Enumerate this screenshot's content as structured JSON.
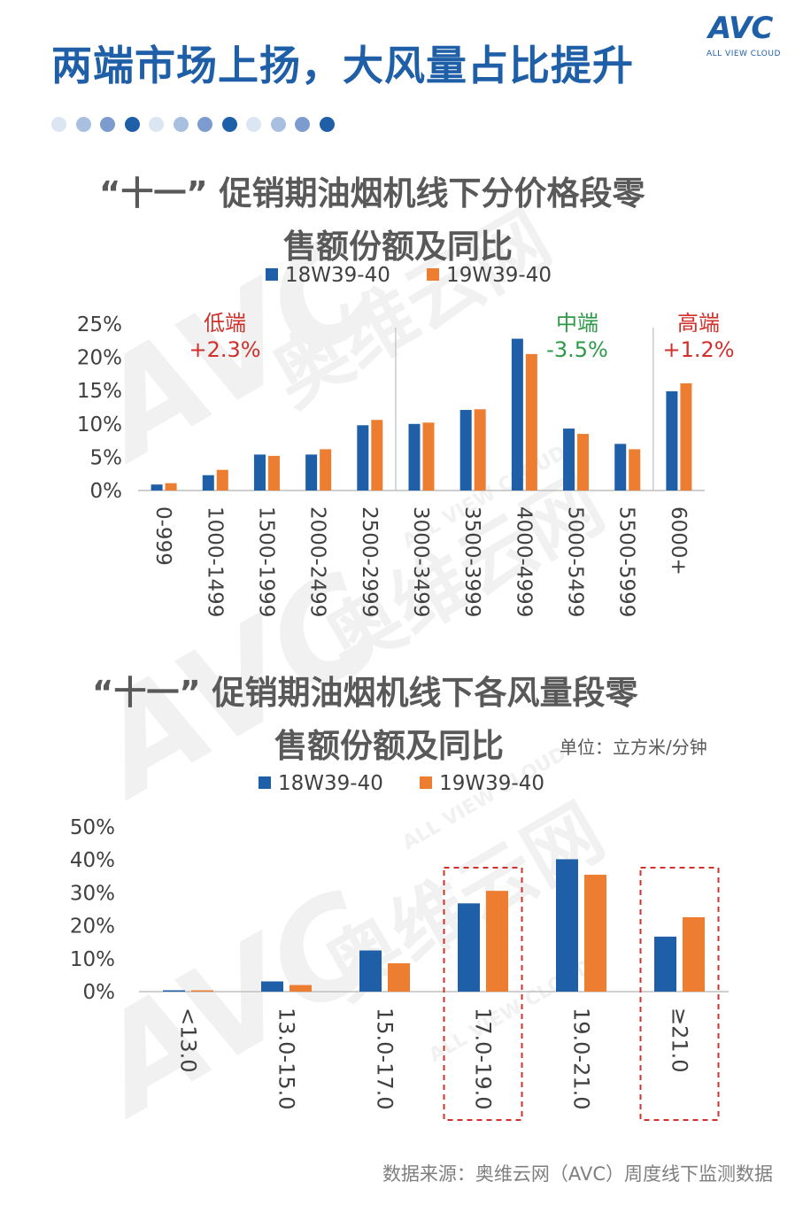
{
  "page": {
    "title": "两端市场上扬，大风量占比提升",
    "logo_text": "AVC",
    "logo_subtext": "ALL VIEW CLOUD",
    "dots": [
      "#dce6f3",
      "#a9bfe0",
      "#7c9cd0",
      "#1f5fa8",
      "#dce6f3",
      "#a9bfe0",
      "#7c9cd0",
      "#1f5fa8",
      "#dce6f3",
      "#a9bfe0",
      "#7c9cd0",
      "#1f5fa8"
    ],
    "source": "数据来源：奥维云网（AVC）周度线下监测数据",
    "watermark": "奥维云网"
  },
  "colors": {
    "series1": "#1f5fa8",
    "series2": "#ed7d31",
    "low_end": "#d0312d",
    "mid_end": "#2e9a48",
    "high_end": "#d0312d",
    "highlight_box": "#d0312d"
  },
  "chart_data": [
    {
      "type": "bar",
      "title_line1": "“十一” 促销期油烟机线下分价格段零",
      "title_line2": "售额份额及同比",
      "categories": [
        "0-999",
        "1000-1499",
        "1500-1999",
        "2000-2499",
        "2500-2999",
        "3000-3499",
        "3500-3999",
        "4000-4999",
        "5000-5499",
        "5500-5999",
        "6000+"
      ],
      "series": [
        {
          "name": "18W39-40",
          "values": [
            0.9,
            2.3,
            5.4,
            5.4,
            9.8,
            10.0,
            12.1,
            22.8,
            9.3,
            7.0,
            14.9
          ]
        },
        {
          "name": "19W39-40",
          "values": [
            1.1,
            3.1,
            5.2,
            6.2,
            10.6,
            10.2,
            12.2,
            20.5,
            8.5,
            6.2,
            16.1
          ]
        }
      ],
      "y_ticks": [
        "25%",
        "20%",
        "15%",
        "10%",
        "5%",
        "0%"
      ],
      "ylim": [
        0,
        25
      ],
      "segments": [
        {
          "label": "低端",
          "change": "+2.3%"
        },
        {
          "label": "中端",
          "change": "-3.5%"
        },
        {
          "label": "高端",
          "change": "+1.2%"
        }
      ],
      "grid": false
    },
    {
      "type": "bar",
      "title_line1": "“十一” 促销期油烟机线下各风量段零",
      "title_line2": "售额份额及同比",
      "unit": "单位：立方米/分钟",
      "categories": [
        "<13.0",
        "13.0-15.0",
        "15.0-17.0",
        "17.0-19.0",
        "19.0-21.0",
        "≥21.0"
      ],
      "series": [
        {
          "name": "18W39-40",
          "values": [
            0.4,
            3.1,
            12.5,
            26.8,
            40.2,
            16.7
          ]
        },
        {
          "name": "19W39-40",
          "values": [
            0.4,
            2.0,
            8.6,
            30.6,
            35.5,
            22.6
          ]
        }
      ],
      "y_ticks": [
        "50%",
        "40%",
        "30%",
        "20%",
        "10%",
        "0%"
      ],
      "ylim": [
        0,
        50
      ],
      "highlighted_categories": [
        "17.0-19.0",
        "≥21.0"
      ],
      "grid": false
    }
  ]
}
